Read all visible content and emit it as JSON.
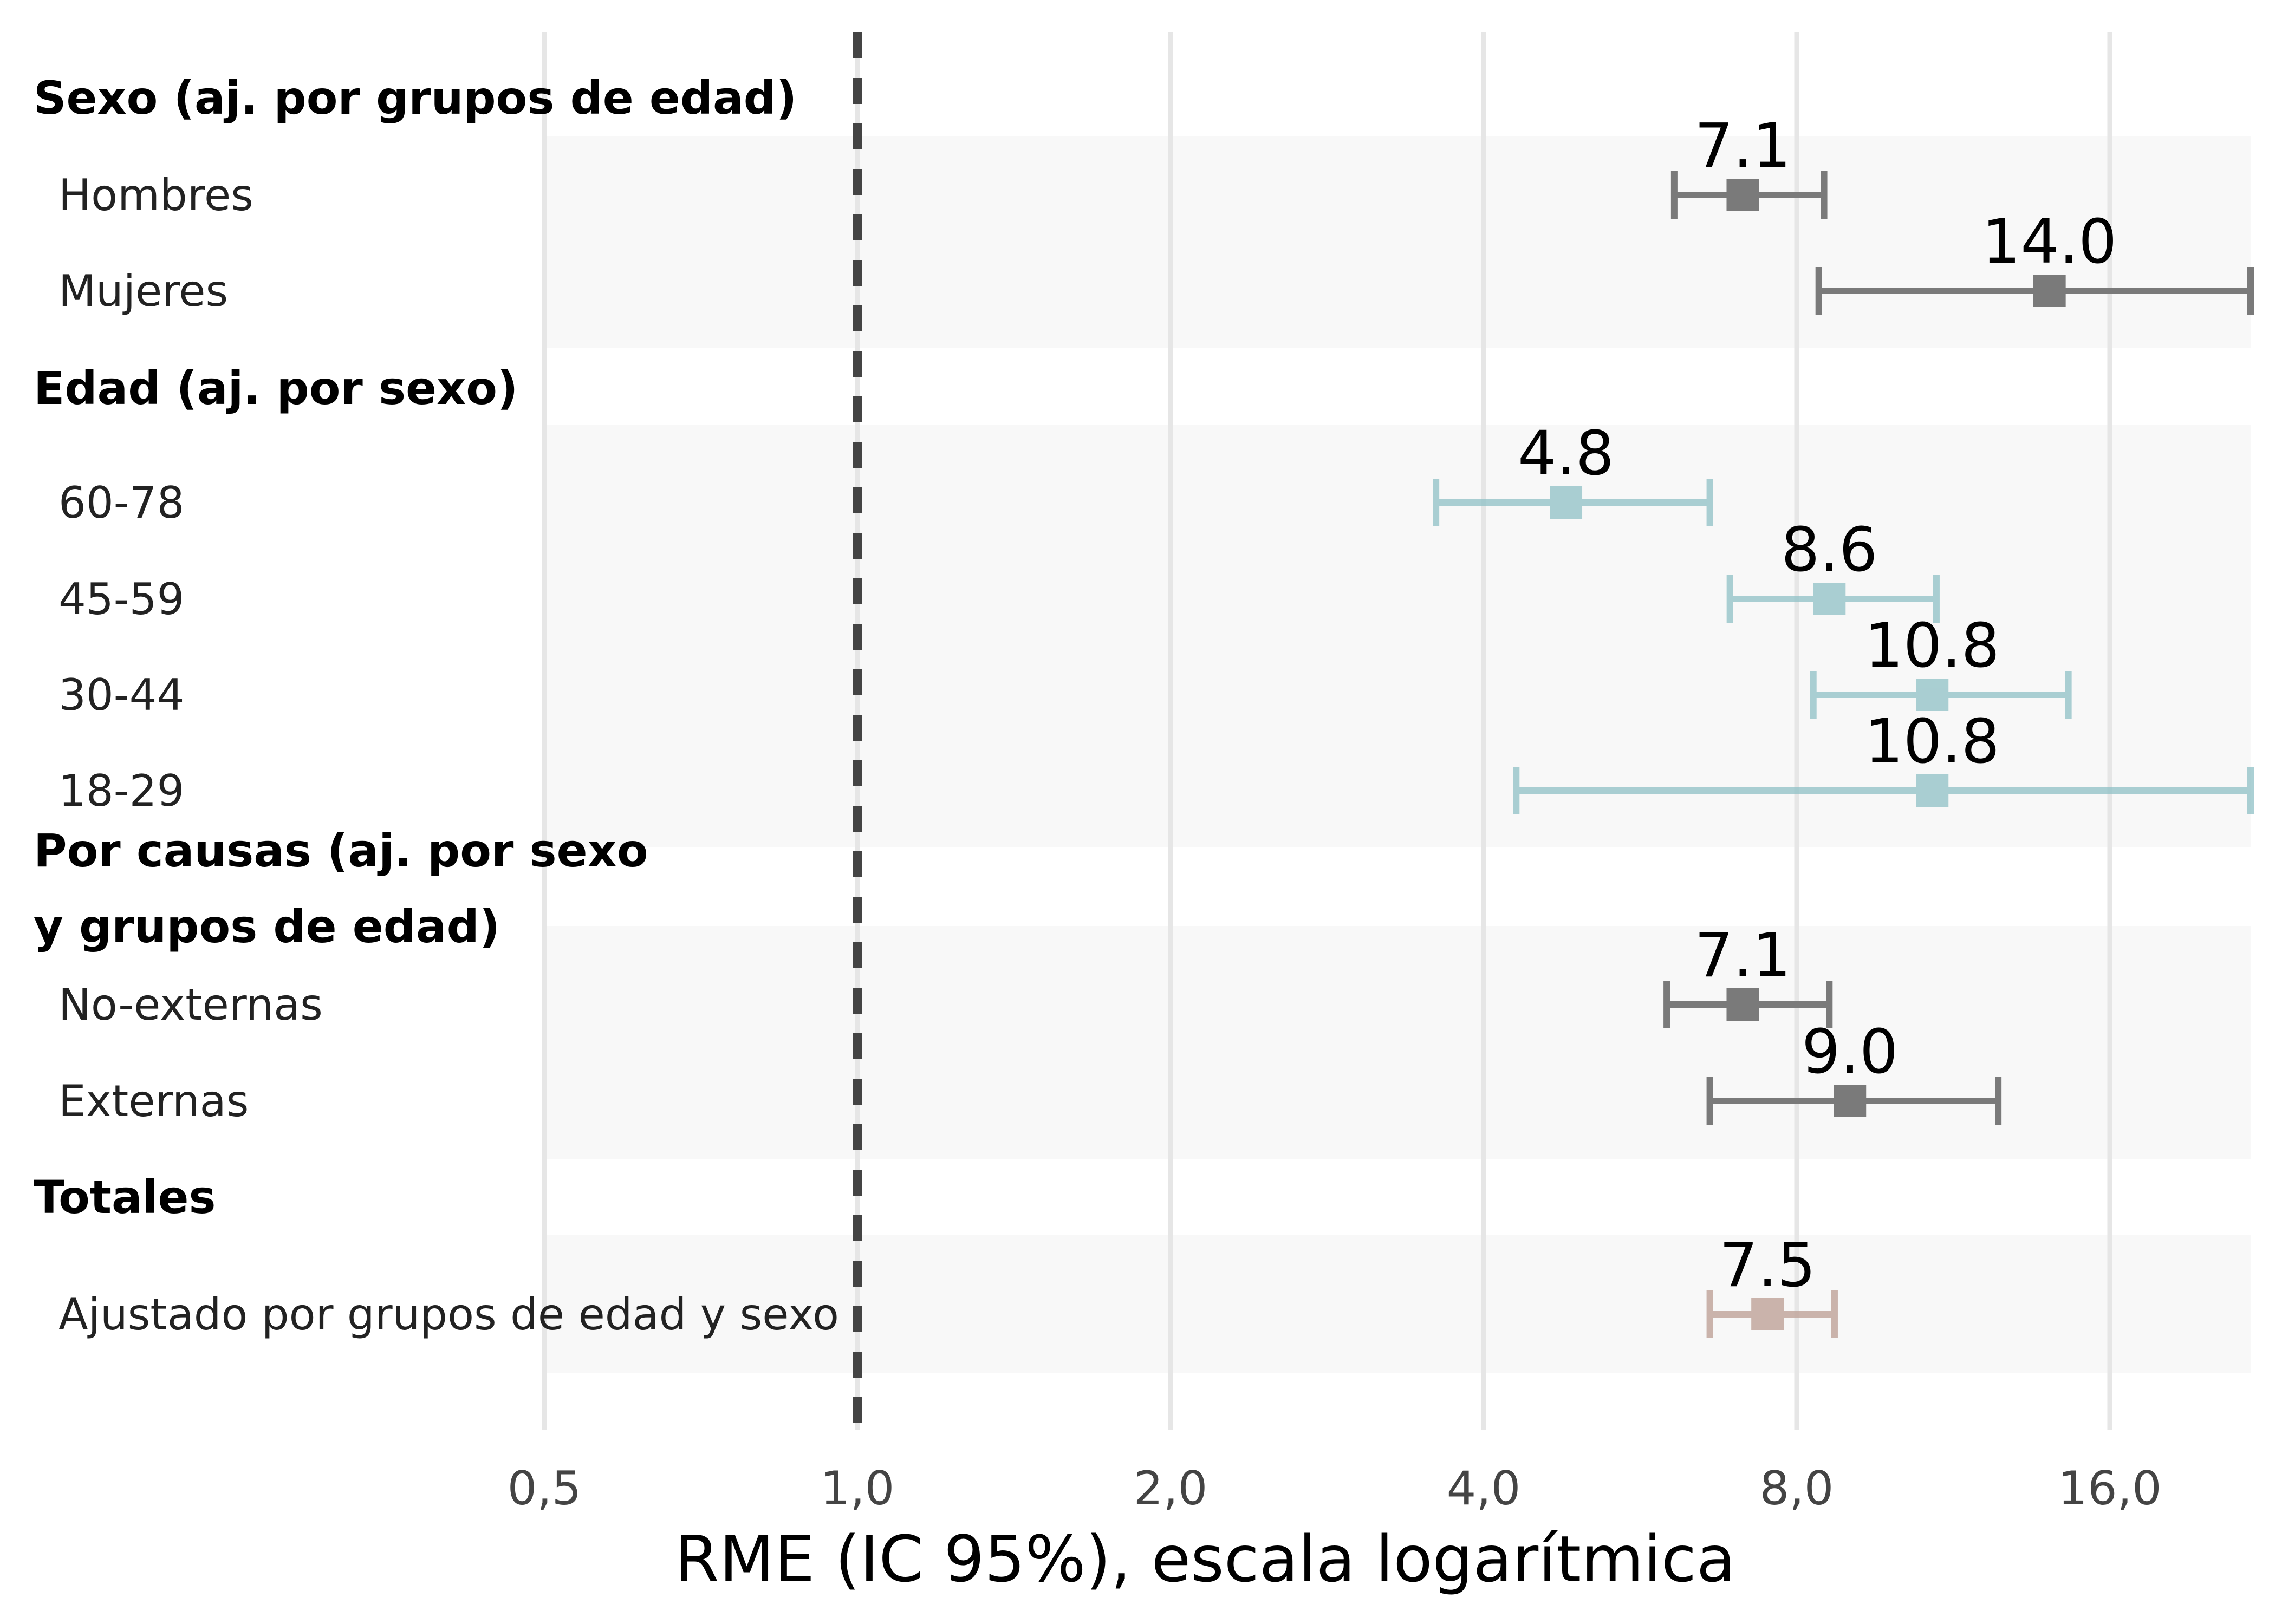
{
  "chart_data": {
    "type": "forest",
    "xlabel": "RME (IC 95%), escala logarítmica",
    "x_scale": "log2",
    "xlim": [
      0.5,
      22
    ],
    "x_ticks": [
      {
        "value": 0.5,
        "label": "0,5"
      },
      {
        "value": 1,
        "label": "1,0"
      },
      {
        "value": 2,
        "label": "2,0"
      },
      {
        "value": 4,
        "label": "4,0"
      },
      {
        "value": 8,
        "label": "8,0"
      },
      {
        "value": 16,
        "label": "16,0"
      }
    ],
    "reference_line": 1,
    "grid": true,
    "groups": [
      {
        "label": "Sexo (aj. por grupos de edad)",
        "color": "#7a7a7a",
        "opacity": 1.0,
        "rows": [
          {
            "label": "Hombres",
            "estimate": 7.1,
            "lower": 6.1,
            "upper": 8.5,
            "value_label": "7.1"
          },
          {
            "label": "Mujeres",
            "estimate": 14.0,
            "lower": 8.4,
            "upper": 22.0,
            "value_label": "14.0"
          }
        ]
      },
      {
        "label": "Edad (aj. por sexo)",
        "color": "#8fc1c6",
        "opacity": 0.75,
        "rows": [
          {
            "label": "60-78",
            "estimate": 4.8,
            "lower": 3.6,
            "upper": 6.6,
            "value_label": "4.8"
          },
          {
            "label": "45-59",
            "estimate": 8.6,
            "lower": 6.9,
            "upper": 10.9,
            "value_label": "8.6"
          },
          {
            "label": "30-44",
            "estimate": 10.8,
            "lower": 8.3,
            "upper": 14.6,
            "value_label": "10.8"
          },
          {
            "label": "18-29",
            "estimate": 10.8,
            "lower": 4.3,
            "upper": 22.0,
            "value_label": "10.8"
          }
        ]
      },
      {
        "label": "Por causas (aj. por sexo",
        "label_line2": "y grupos de edad)",
        "color": "#7a7a7a",
        "opacity": 1.0,
        "rows": [
          {
            "label": "No-externas",
            "estimate": 7.1,
            "lower": 6.0,
            "upper": 8.6,
            "value_label": "7.1"
          },
          {
            "label": "Externas",
            "estimate": 9.0,
            "lower": 6.6,
            "upper": 12.5,
            "value_label": "9.0"
          }
        ]
      },
      {
        "label": "Totales",
        "color": "#c2a79e",
        "opacity": 0.85,
        "rows": [
          {
            "label": "Ajustado por grupos de edad y sexo",
            "estimate": 7.5,
            "lower": 6.6,
            "upper": 8.7,
            "value_label": "7.5"
          }
        ]
      }
    ]
  }
}
